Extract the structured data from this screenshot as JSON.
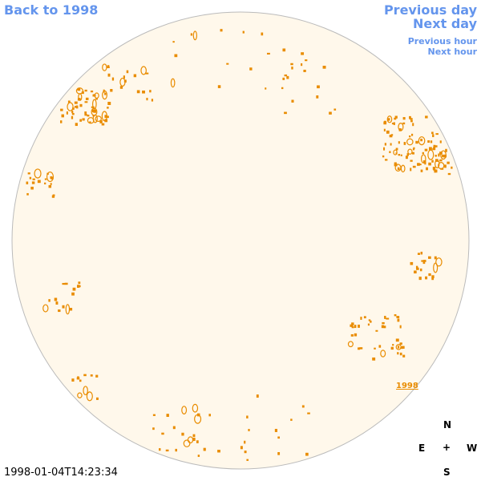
{
  "nav": {
    "back": "Back to 1998",
    "previous_day": "Previous day",
    "next_day": "Next day",
    "previous_hour": "Previous hour",
    "next_hour": "Next hour"
  },
  "year_link": "1998",
  "compass": {
    "north": "N",
    "east": "E",
    "center": "+",
    "west": "W",
    "south": "S"
  },
  "timestamp": "1998-01-04T14:23:34"
}
